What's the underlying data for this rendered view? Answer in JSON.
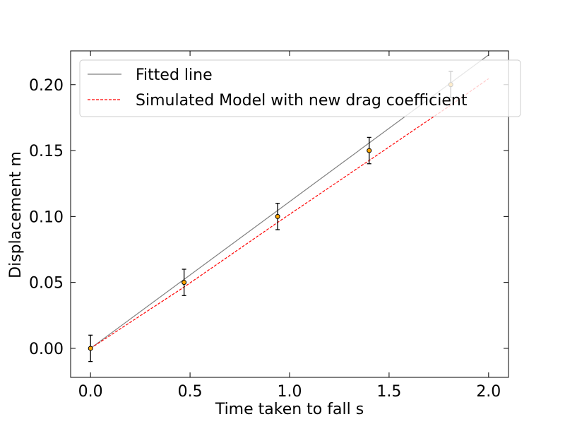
{
  "chart_data": {
    "type": "scatter",
    "xlabel": "Time taken to fall s",
    "ylabel": "Displacement m",
    "xlim": [
      -0.1,
      2.1
    ],
    "ylim": [
      -0.022,
      0.2256
    ],
    "xticks": [
      0.0,
      0.5,
      1.0,
      1.5,
      2.0
    ],
    "xtick_labels": [
      "0.0",
      "0.5",
      "1.0",
      "1.5",
      "2.0"
    ],
    "yticks": [
      0.0,
      0.05,
      0.1,
      0.15,
      0.2
    ],
    "ytick_labels": [
      "0.00",
      "0.05",
      "0.10",
      "0.15",
      "0.20"
    ],
    "grid": false,
    "legend_position": "upper-left",
    "series": [
      {
        "name": "Fitted line",
        "kind": "line",
        "style": "solid",
        "color": "#808080",
        "x": [
          0.0,
          2.0
        ],
        "y": [
          0.0,
          0.2225
        ]
      },
      {
        "name": "Simulated Model with new drag coefficient",
        "kind": "line",
        "style": "dashed",
        "color": "#ff0000",
        "x": [
          0.0,
          0.47,
          0.94,
          1.4,
          1.81,
          2.0
        ],
        "y": [
          0.0,
          0.0465,
          0.0955,
          0.1425,
          0.1845,
          0.2045
        ]
      },
      {
        "kind": "points",
        "marker_color": "#ffa500",
        "errorbar_color": "#000000",
        "x": [
          0.0,
          0.47,
          0.94,
          1.4,
          1.81
        ],
        "y": [
          0.0,
          0.05,
          0.1,
          0.15,
          0.2
        ],
        "yerr": [
          0.01,
          0.01,
          0.01,
          0.01,
          0.01
        ]
      }
    ]
  }
}
